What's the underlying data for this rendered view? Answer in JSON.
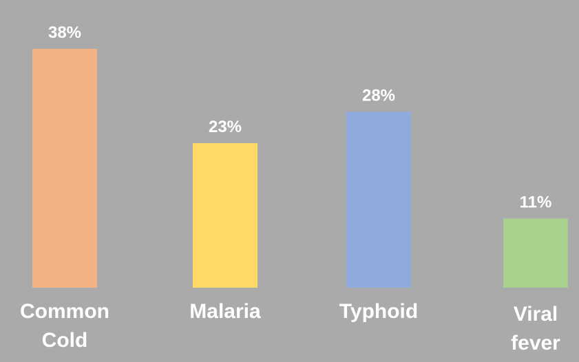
{
  "chart_data": {
    "type": "bar",
    "title": "",
    "xlabel": "",
    "ylabel": "",
    "categories": [
      [
        "Common",
        "Cold"
      ],
      [
        "Malaria"
      ],
      [
        "Typhoid"
      ],
      [
        "Viral",
        "fever"
      ]
    ],
    "values": [
      38,
      23,
      28,
      11
    ],
    "value_labels": [
      "38%",
      "23%",
      "28%",
      "11%"
    ],
    "colors": [
      "#f4b183",
      "#ffd966",
      "#8faadc",
      "#a9d18e"
    ],
    "background": "#aaaaaa",
    "grid": false,
    "legend": "none"
  }
}
